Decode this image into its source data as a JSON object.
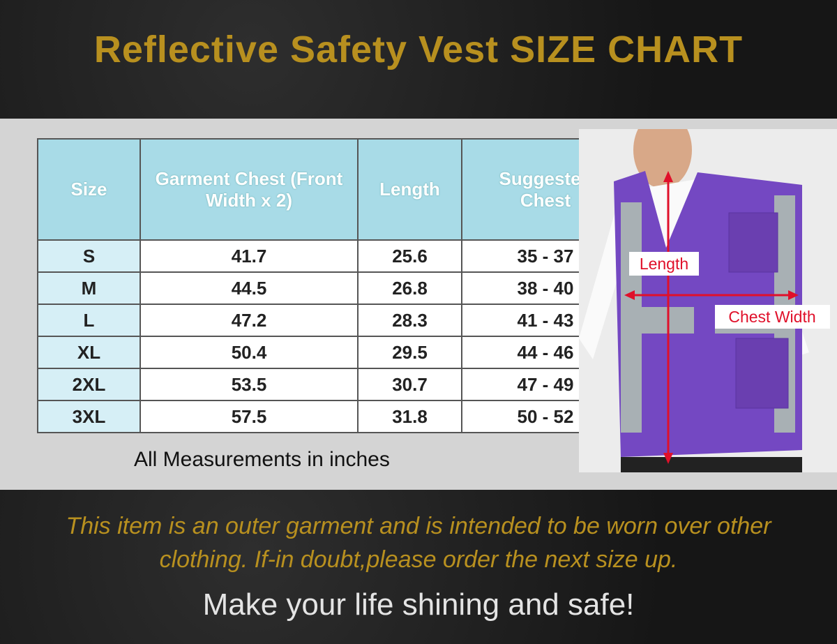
{
  "header": {
    "title": "Reflective Safety Vest SIZE CHART"
  },
  "table": {
    "columns": [
      "Size",
      "Garment Chest (Front Width x 2)",
      "Length",
      "Suggested Chest"
    ],
    "rows": [
      [
        "S",
        "41.7",
        "25.6",
        "35 - 37"
      ],
      [
        "M",
        "44.5",
        "26.8",
        "38 - 40"
      ],
      [
        "L",
        "47.2",
        "28.3",
        "41 - 43"
      ],
      [
        "XL",
        "50.4",
        "29.5",
        "44 - 46"
      ],
      [
        "2XL",
        "53.5",
        "30.7",
        "47 - 49"
      ],
      [
        "3XL",
        "57.5",
        "31.8",
        "50 - 52"
      ]
    ],
    "note": "All Measurements in inches"
  },
  "illustration": {
    "labels": [
      "Length",
      "Chest Width"
    ]
  },
  "footer": {
    "notice": [
      "This item is an outer garment and is intended to be worn over other",
      "clothing. If-in doubt,please order the next size up."
    ],
    "slogan": "Make your life shining and safe!"
  }
}
